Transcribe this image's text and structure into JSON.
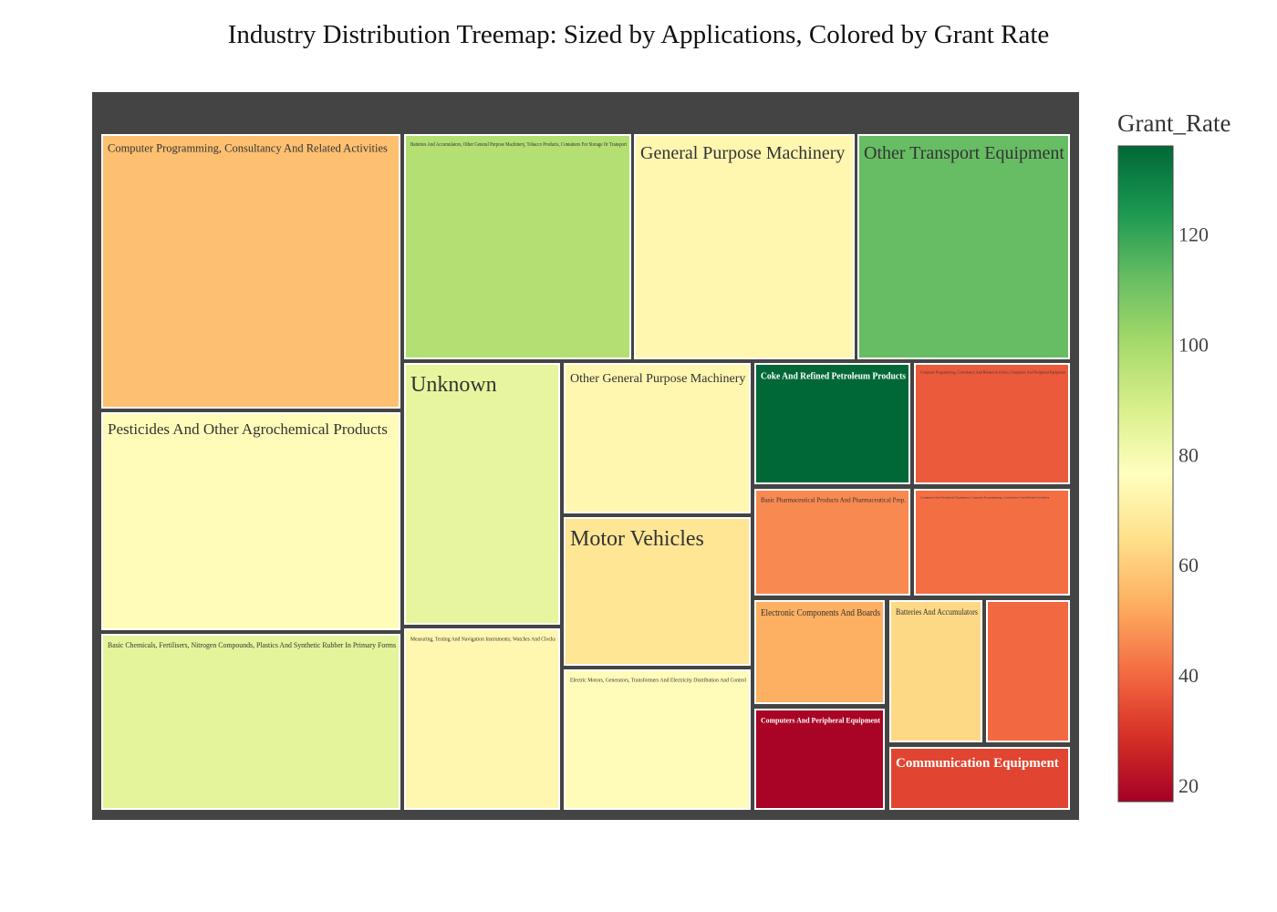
{
  "chart_data": {
    "type": "treemap",
    "title": "Industry Distribution Treemap: Sized by Applications, Colored by Grant Rate",
    "size_variable": "Applications",
    "color_variable": "Grant_Rate",
    "colorscale": "RdYlGn",
    "colorbar": {
      "title": "Grant_Rate",
      "range": [
        17,
        136
      ],
      "ticks": [
        20,
        40,
        60,
        80,
        100,
        120
      ]
    },
    "tiles": [
      {
        "label": "Computer Programming, Consultancy And Related Activities",
        "grant_rate": 57
      },
      {
        "label": "Batteries And Accumulators, Other General Purpose Machinery, Tobacco Products, Containers For Storage Or Transport",
        "grant_rate": 97
      },
      {
        "label": "General Purpose Machinery",
        "grant_rate": 73
      },
      {
        "label": "Other Transport Equipment",
        "grant_rate": 112
      },
      {
        "label": "Pesticides And Other Agrochemical Products",
        "grant_rate": 75
      },
      {
        "label": "Basic Chemicals, Fertilisers, Nitrogen Compounds, Plastics And Synthetic Rubber In Primary Forms",
        "grant_rate": 85
      },
      {
        "label": "Unknown",
        "grant_rate": 84
      },
      {
        "label": "Measuring, Testing And Navigation Instruments; Watches And Clocks",
        "grant_rate": 73
      },
      {
        "label": "Other General Purpose Machinery",
        "grant_rate": 73
      },
      {
        "label": "Motor Vehicles",
        "grant_rate": 67
      },
      {
        "label": "Electric Motors, Generators, Transformers And Electricity Distribution And Control",
        "grant_rate": 75
      },
      {
        "label": "Coke And Refined Petroleum Products",
        "grant_rate": 136
      },
      {
        "label": "Computer Programming, Consultancy And Related Activities, Computers And Peripheral Equipment",
        "grant_rate": 37
      },
      {
        "label": "Basic Pharmaceutical Products And Pharmaceutical Prep.",
        "grant_rate": 46
      },
      {
        "label": "Computers And Peripheral Equipment, Computer Programming, Consultancy And Related Activities",
        "grant_rate": 41
      },
      {
        "label": "Electronic Components And Boards",
        "grant_rate": 53
      },
      {
        "label": "Batteries And Accumulators",
        "grant_rate": 63
      },
      {
        "label": "",
        "grant_rate": 40
      },
      {
        "label": "Computers And Peripheral Equipment",
        "grant_rate": 18
      },
      {
        "label": "Communication Equipment",
        "grant_rate": 33
      }
    ]
  }
}
